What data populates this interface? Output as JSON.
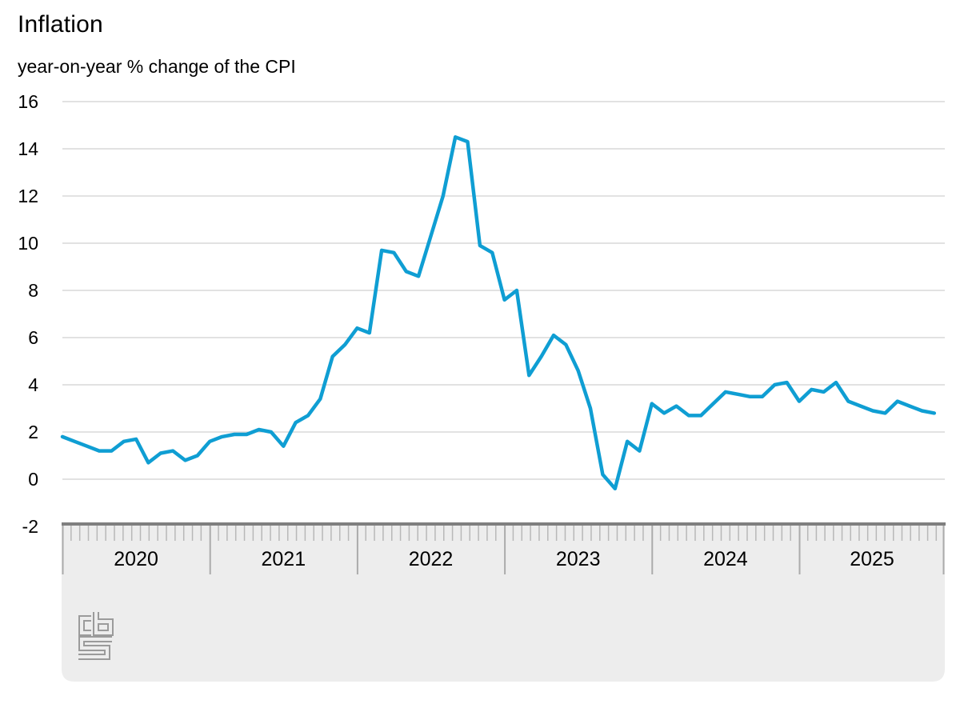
{
  "header": {
    "title": "Inflation",
    "subtitle": "year-on-year % change of the CPI"
  },
  "chart_data": {
    "type": "line",
    "title": "Inflation",
    "subtitle": "year-on-year % change of the CPI",
    "frequency": "monthly",
    "start_month": "2020-01",
    "end_month": "2025-12",
    "x_year_labels": [
      "2020",
      "2021",
      "2022",
      "2023",
      "2024",
      "2025"
    ],
    "ylim": [
      -2,
      16
    ],
    "yticks": [
      16,
      14,
      12,
      10,
      8,
      6,
      4,
      2,
      0,
      -2
    ],
    "grid": "horizontal",
    "legend": "none",
    "series": [
      {
        "name": "CPI year-on-year % change",
        "color": "#0f9ed3",
        "values": [
          1.8,
          1.6,
          1.4,
          1.2,
          1.2,
          1.6,
          1.7,
          0.7,
          1.1,
          1.2,
          0.8,
          1.0,
          1.6,
          1.8,
          1.9,
          1.9,
          2.1,
          2.0,
          1.4,
          2.4,
          2.7,
          3.4,
          5.2,
          5.7,
          6.4,
          6.2,
          9.7,
          9.6,
          8.8,
          8.6,
          10.3,
          12.0,
          14.5,
          14.3,
          9.9,
          9.6,
          7.6,
          8.0,
          4.4,
          5.2,
          6.1,
          5.7,
          4.6,
          3.0,
          0.2,
          -0.4,
          1.6,
          1.2,
          3.2,
          2.8,
          3.1,
          2.7,
          2.7,
          3.2,
          3.7,
          3.6,
          3.5,
          3.5,
          4.0,
          4.1,
          3.3,
          3.8,
          3.7,
          4.1,
          3.3,
          3.1,
          2.9,
          2.8,
          3.3,
          3.1,
          2.9,
          2.8
        ]
      }
    ]
  },
  "footer": {
    "logo": "cbs-logo"
  },
  "colors": {
    "line": "#0f9ed3",
    "gridline": "#c6c6c6",
    "axis_band_bg": "#ededed",
    "axis_band_topline": "#7f7f7f",
    "month_tick": "#b8b8b8",
    "year_separator": "#ababab",
    "text": "#000000",
    "logo": "#9b9b9b"
  }
}
